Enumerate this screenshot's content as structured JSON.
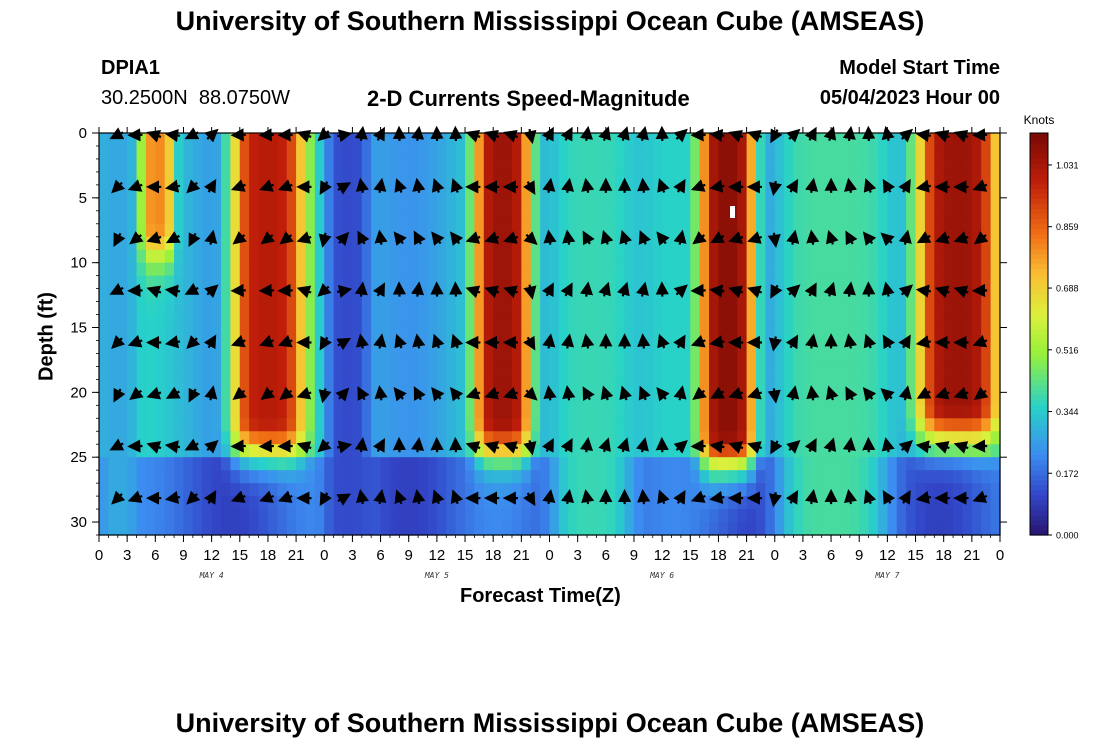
{
  "page": {
    "title_top": "University of Southern Mississippi Ocean Cube (AMSEAS)",
    "title_bottom": "University of Southern Mississippi Ocean Cube (AMSEAS)",
    "station_id": "DPIA1",
    "station_coords": "30.2500N  88.0750W",
    "chart_heading": "2-D Currents Speed-Magnitude",
    "model_start_label": "Model Start Time",
    "model_start_value": "05/04/2023 Hour 00"
  },
  "chart_data": {
    "type": "heatmap",
    "title": "2-D Currents Speed-Magnitude",
    "xlabel": "Forecast Time(Z)",
    "ylabel": "Depth (ft)",
    "x_unit": "hours since 05/04/2023 00Z",
    "xlim": [
      0,
      96
    ],
    "ylim": [
      0,
      31
    ],
    "y_inverted": true,
    "x_tick_values": [
      0,
      3,
      6,
      9,
      12,
      15,
      18,
      21,
      24,
      27,
      30,
      33,
      36,
      39,
      42,
      45,
      48,
      51,
      54,
      57,
      60,
      63,
      66,
      69,
      72,
      75,
      78,
      81,
      84,
      87,
      90,
      93,
      96
    ],
    "x_tick_labels": [
      "0",
      "3",
      "6",
      "9",
      "12",
      "15",
      "18",
      "21",
      "0",
      "3",
      "6",
      "9",
      "12",
      "15",
      "18",
      "21",
      "0",
      "3",
      "6",
      "9",
      "12",
      "15",
      "18",
      "21",
      "0",
      "3",
      "6",
      "9",
      "12",
      "15",
      "18",
      "21",
      "0"
    ],
    "y_tick_values": [
      0,
      5,
      10,
      15,
      20,
      25,
      30
    ],
    "y_tick_labels": [
      "0",
      "5",
      "10",
      "15",
      "20",
      "25",
      "30"
    ],
    "day_labels": [
      {
        "label": "MAY 4",
        "hour": 12
      },
      {
        "label": "MAY 5",
        "hour": 36
      },
      {
        "label": "MAY 6",
        "hour": 60
      },
      {
        "label": "MAY 7",
        "hour": 84
      }
    ],
    "colorbar": {
      "unit": "Knots",
      "min": 0.0,
      "max": 1.12,
      "tick_values": [
        0.0,
        0.172,
        0.344,
        0.516,
        0.688,
        0.859,
        1.031
      ],
      "tick_labels": [
        "0.000",
        "0.172",
        "0.344",
        "0.516",
        "0.688",
        "0.859",
        "1.031"
      ]
    },
    "speed_bands_knots": [
      {
        "from_hour": 0,
        "to_hour": 4,
        "from_depth": 0,
        "to_depth": 31,
        "speed": 0.28
      },
      {
        "from_hour": 4.5,
        "to_hour": 8,
        "from_depth": 0,
        "to_depth": 7,
        "speed": 0.8
      },
      {
        "from_hour": 14,
        "to_hour": 22,
        "from_depth": 0,
        "to_depth": 22,
        "speed": 1.0
      },
      {
        "from_hour": 40,
        "to_hour": 46,
        "from_depth": 0,
        "to_depth": 22,
        "speed": 1.05
      },
      {
        "from_hour": 64,
        "to_hour": 70,
        "from_depth": 0,
        "to_depth": 23,
        "speed": 1.08
      },
      {
        "from_hour": 87,
        "to_hour": 96,
        "from_depth": 0,
        "to_depth": 21,
        "speed": 1.05
      },
      {
        "from_hour": 24,
        "to_hour": 29,
        "from_depth": 0,
        "to_depth": 31,
        "speed": 0.12
      },
      {
        "from_hour": 48,
        "to_hour": 57,
        "from_depth": 0,
        "to_depth": 31,
        "speed": 0.38
      },
      {
        "from_hour": 72,
        "to_hour": 84,
        "from_depth": 0,
        "to_depth": 31,
        "speed": 0.4
      }
    ],
    "arrow_depths_ft": [
      0,
      4,
      8,
      12,
      16,
      20,
      24,
      28
    ],
    "arrow_hours": [
      2,
      4,
      6,
      8,
      10,
      12,
      15,
      18,
      20,
      22,
      24,
      26,
      28,
      30,
      32,
      34,
      36,
      38,
      40,
      42,
      44,
      46,
      48,
      50,
      52,
      54,
      56,
      58,
      60,
      62,
      64,
      66,
      68,
      70,
      72,
      74,
      76,
      78,
      80,
      82,
      84,
      86,
      88,
      90,
      92,
      94
    ],
    "arrow_direction_by_hour_deg": [
      225,
      200,
      180,
      190,
      225,
      60,
      200,
      200,
      200,
      180,
      240,
      30,
      100,
      80,
      110,
      100,
      110,
      110,
      180,
      180,
      180,
      300,
      80,
      80,
      100,
      90,
      90,
      95,
      110,
      60,
      200,
      190,
      180,
      180,
      260,
      60,
      80,
      90,
      100,
      110,
      120,
      60,
      190,
      180,
      180,
      200
    ]
  }
}
